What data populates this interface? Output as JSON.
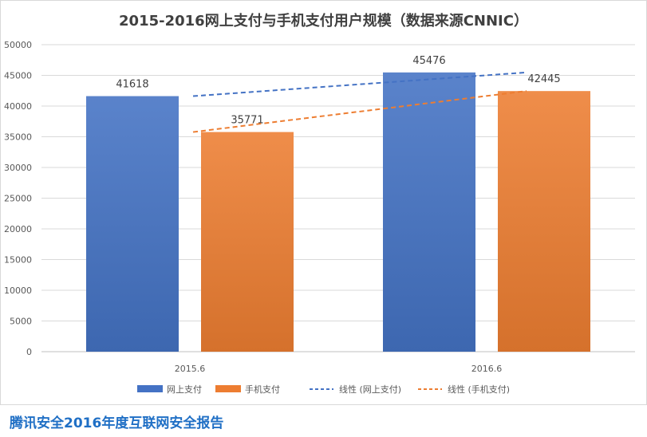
{
  "chart_data": {
    "type": "bar",
    "title": "2015-2016网上支付与手机支付用户规模（数据来源CNNIC）",
    "categories": [
      "2015.6",
      "2016.6"
    ],
    "series": [
      {
        "name": "网上支付",
        "values": [
          41618,
          45476
        ],
        "color": "#4472c4"
      },
      {
        "name": "手机支付",
        "values": [
          35771,
          42445
        ],
        "color": "#ed7d31"
      }
    ],
    "trendlines": [
      {
        "name": "线性 (网上支付)",
        "series": "网上支付",
        "color": "#4472c4",
        "style": "dashed"
      },
      {
        "name": "线性 (手机支付)",
        "series": "手机支付",
        "color": "#ed7d31",
        "style": "dashed"
      }
    ],
    "ylim": [
      0,
      50000
    ],
    "yticks": [
      0,
      5000,
      10000,
      15000,
      20000,
      25000,
      30000,
      35000,
      40000,
      45000,
      50000
    ],
    "data_labels": true,
    "grid": true,
    "legend_position": "bottom",
    "xlabel": "",
    "ylabel": ""
  },
  "footer": {
    "text": "腾讯安全2016年度互联网安全报告"
  }
}
